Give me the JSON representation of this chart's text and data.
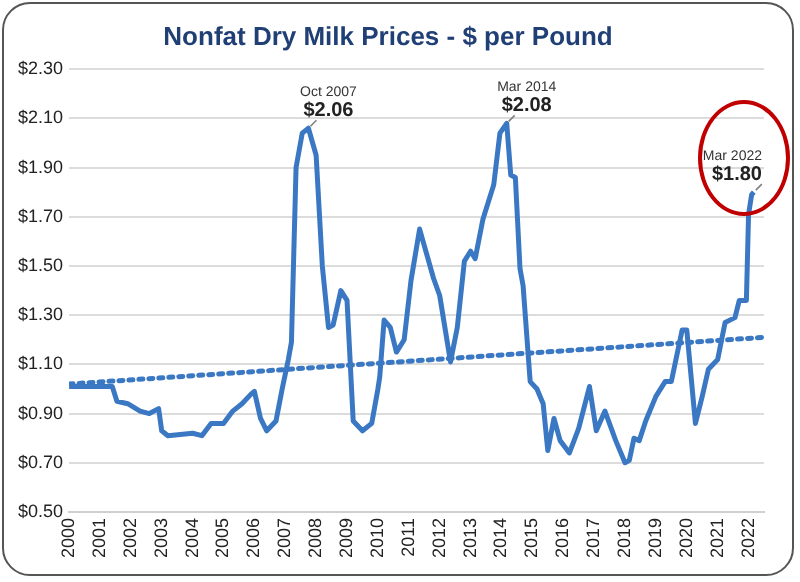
{
  "chart_data": {
    "type": "line",
    "title": "Nonfat Dry Milk Prices - $ per Pound",
    "series": [
      {
        "color": "#3b78c3",
        "line_style": "solid",
        "x": [
          2000.0,
          2001.4,
          2001.55,
          2001.9,
          2002.3,
          2002.6,
          2002.9,
          2003.0,
          2003.2,
          2004.0,
          2004.3,
          2004.6,
          2005.0,
          2005.3,
          2005.6,
          2005.9,
          2006.0,
          2006.2,
          2006.4,
          2006.7,
          2006.9,
          2007.1,
          2007.2,
          2007.35,
          2007.55,
          2007.75,
          2008.0,
          2008.2,
          2008.4,
          2008.55,
          2008.8,
          2009.0,
          2009.2,
          2009.5,
          2009.8,
          2010.0,
          2010.06,
          2010.2,
          2010.4,
          2010.6,
          2010.85,
          2011.07,
          2011.35,
          2011.8,
          2012.0,
          2012.35,
          2012.57,
          2012.8,
          2013.0,
          2013.15,
          2013.4,
          2013.75,
          2013.95,
          2014.17,
          2014.3,
          2014.45,
          2014.6,
          2014.7,
          2014.93,
          2015.15,
          2015.35,
          2015.5,
          2015.7,
          2015.9,
          2016.2,
          2016.5,
          2016.85,
          2017.07,
          2017.35,
          2017.7,
          2018.0,
          2018.14,
          2018.29,
          2018.46,
          2018.67,
          2019.0,
          2019.3,
          2019.5,
          2019.85,
          2020.0,
          2020.28,
          2020.5,
          2020.7,
          2021.0,
          2021.24,
          2021.56,
          2021.7,
          2021.93,
          2022.0,
          2022.1,
          2022.17
        ],
        "values": [
          1.01,
          1.01,
          0.95,
          0.94,
          0.91,
          0.9,
          0.92,
          0.83,
          0.81,
          0.82,
          0.81,
          0.86,
          0.86,
          0.91,
          0.94,
          0.98,
          0.99,
          0.88,
          0.83,
          0.87,
          1.0,
          1.12,
          1.19,
          1.9,
          2.04,
          2.06,
          1.95,
          1.5,
          1.25,
          1.26,
          1.4,
          1.36,
          0.87,
          0.83,
          0.86,
          1.0,
          1.05,
          1.28,
          1.25,
          1.15,
          1.2,
          1.44,
          1.65,
          1.45,
          1.38,
          1.11,
          1.25,
          1.52,
          1.56,
          1.53,
          1.69,
          1.83,
          2.04,
          2.08,
          1.87,
          1.86,
          1.49,
          1.42,
          1.03,
          1.0,
          0.94,
          0.75,
          0.88,
          0.79,
          0.74,
          0.84,
          1.01,
          0.83,
          0.91,
          0.79,
          0.7,
          0.71,
          0.8,
          0.79,
          0.87,
          0.97,
          1.03,
          1.03,
          1.24,
          1.24,
          0.86,
          0.97,
          1.08,
          1.12,
          1.27,
          1.29,
          1.36,
          1.36,
          1.71,
          1.79,
          1.8
        ]
      },
      {
        "color": "#3b78c3",
        "line_style": "dotted",
        "x": [
          2000.0,
          2022.5
        ],
        "values": [
          1.02,
          1.21
        ]
      }
    ],
    "xlim": [
      2000,
      2022.5
    ],
    "xticks": [
      2000,
      2001,
      2002,
      2003,
      2004,
      2005,
      2006,
      2007,
      2008,
      2009,
      2010,
      2011,
      2012,
      2013,
      2014,
      2015,
      2016,
      2017,
      2018,
      2019,
      2020,
      2021,
      2022
    ],
    "ylim": [
      0.5,
      2.3
    ],
    "yticks": [
      {
        "value": 0.5,
        "label": "$0.50"
      },
      {
        "value": 0.7,
        "label": "$0.70"
      },
      {
        "value": 0.9,
        "label": "$0.90"
      },
      {
        "value": 1.1,
        "label": "$1.10"
      },
      {
        "value": 1.3,
        "label": "$1.30"
      },
      {
        "value": 1.5,
        "label": "$1.50"
      },
      {
        "value": 1.7,
        "label": "$1.70"
      },
      {
        "value": 1.9,
        "label": "$1.90"
      },
      {
        "value": 2.1,
        "label": "$2.10"
      },
      {
        "value": 2.3,
        "label": "$2.30"
      }
    ],
    "grid": "y",
    "legend": false,
    "marker": "none",
    "annotations": [
      {
        "text": "Oct 2007",
        "x": 2007.75,
        "y": 2.06
      },
      {
        "text": "$2.06",
        "x": 2007.75,
        "y": 2.06
      },
      {
        "text": "Mar 2014",
        "x": 2014.17,
        "y": 2.08
      },
      {
        "text": "$2.08",
        "x": 2014.17,
        "y": 2.08
      },
      {
        "text": "Mar 2022",
        "x": 2022.17,
        "y": 1.8
      },
      {
        "text": "$1.80",
        "x": 2022.17,
        "y": 1.8
      }
    ]
  }
}
